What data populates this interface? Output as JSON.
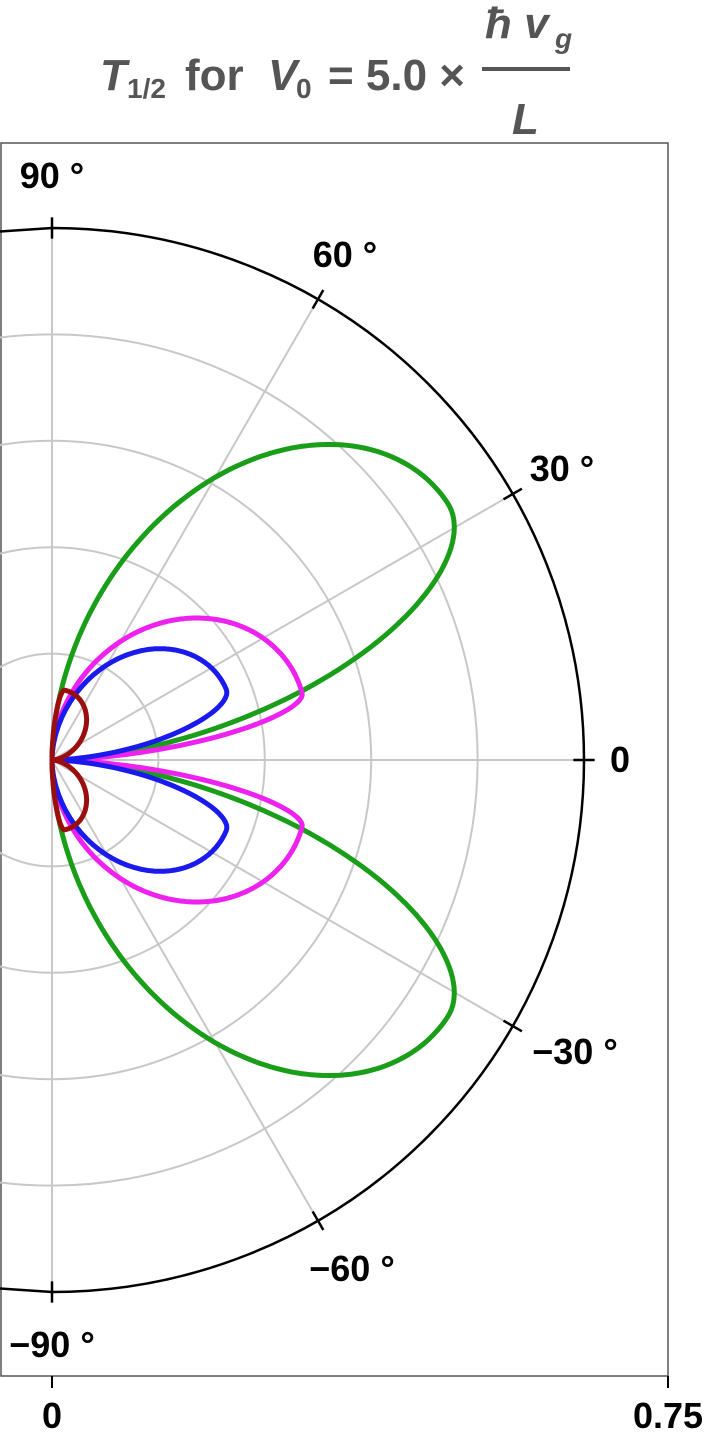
{
  "title": {
    "symbol": "T",
    "symbol_sub": "1/2",
    "for_text": "for",
    "var": "V",
    "var_sub": "0",
    "equals": "= 5.0 ×",
    "numerator": "ħ v",
    "numerator_sub": "g",
    "denominator": "L"
  },
  "chart_data": {
    "type": "polar",
    "title": "T1/2 for V0 = 5.0 × ħ vg / L",
    "theta_unit": "degrees",
    "theta_range": [
      -90,
      90
    ],
    "radius_range": [
      0,
      0.75
    ],
    "radial_gridlines": [
      0.15,
      0.3,
      0.45,
      0.6
    ],
    "angular_gridlines": [
      -90,
      -60,
      -30,
      0,
      30,
      60,
      90
    ],
    "angle_tick_labels": [
      {
        "angle": 90,
        "label": "90 °"
      },
      {
        "angle": 60,
        "label": "60 °"
      },
      {
        "angle": 30,
        "label": "30 °"
      },
      {
        "angle": 0,
        "label": "0"
      },
      {
        "angle": -30,
        "label": "−30 °"
      },
      {
        "angle": -60,
        "label": "−60 °"
      },
      {
        "angle": -90,
        "label": "−90 °"
      }
    ],
    "radius_tick_labels": [
      {
        "value": 0,
        "label": "0"
      },
      {
        "value": 0.75,
        "label": "0.75"
      }
    ],
    "grid": true,
    "legend": "none",
    "series": [
      {
        "color": "#1a9e1a",
        "peak_radius": 0.665,
        "peak_angle_deg": 33,
        "lobe_width_deg": 66,
        "symmetric": true
      },
      {
        "color": "#ee22ee",
        "peak_radius": 0.365,
        "peak_angle_deg": 15,
        "lobe_width_deg": 30,
        "symmetric": true
      },
      {
        "color": "#1a1aee",
        "peak_radius": 0.265,
        "peak_angle_deg": 22,
        "lobe_width_deg": 44,
        "symmetric": true
      },
      {
        "color": "#9a0e0e",
        "peak_radius": 0.1,
        "peak_angle_deg": 80,
        "lobe_width_deg": 18,
        "symmetric": true
      }
    ]
  }
}
